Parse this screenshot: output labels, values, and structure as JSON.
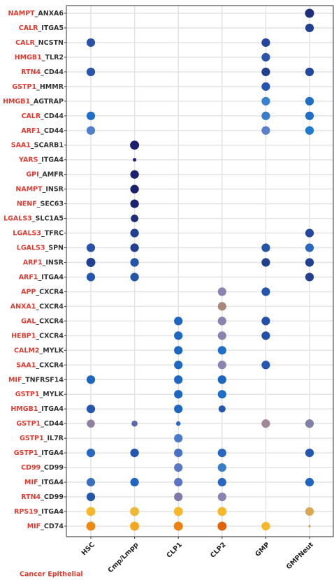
{
  "chart_data": {
    "type": "dotplot",
    "ligands": [
      "NAMPT",
      "CALR",
      "CALR",
      "HMGB1",
      "RTN4",
      "GSTP1",
      "HMGB1",
      "CALR",
      "ARF1",
      "SAA1",
      "YARS",
      "GPI",
      "NAMPT",
      "NENF",
      "LGALS3",
      "LGALS3",
      "LGALS3",
      "ARF1",
      "ARF1",
      "APP",
      "ANXA1",
      "GAL",
      "HEBP1",
      "CALM2",
      "SAA1",
      "MIF",
      "GSTP1",
      "HMGB1",
      "GSTP1",
      "GSTP1",
      "GSTP1",
      "CD99",
      "MIF",
      "RTN4",
      "RPS19",
      "MIF"
    ],
    "receptors": [
      "ANXA6",
      "ITGA5",
      "NCSTN",
      "TLR2",
      "CD44",
      "HMMR",
      "AGTRAP",
      "CD44",
      "CD44",
      "SCARB1",
      "ITGA4",
      "AMFR",
      "INSR",
      "SEC63",
      "SLC1A5",
      "TFRC",
      "SPN",
      "INSR",
      "ITGA4",
      "CXCR4",
      "CXCR4",
      "CXCR4",
      "CXCR4",
      "MYLK",
      "CXCR4",
      "TNFRSF14",
      "MYLK",
      "ITGA4",
      "CD44",
      "IL7R",
      "ITGA4",
      "CD99",
      "ITGA4",
      "CD99",
      "ITGA4",
      "CD74"
    ],
    "separator": "_",
    "ligand_color": "#e03c31",
    "receptor_color": "#333333",
    "footer": "Cancer Epithelial",
    "series": [
      {
        "name": "HSC",
        "values": [
          null,
          null,
          0.85,
          null,
          0.85,
          null,
          null,
          0.85,
          0.85,
          null,
          null,
          null,
          null,
          null,
          null,
          null,
          0.85,
          0.9,
          0.85,
          null,
          null,
          null,
          null,
          null,
          null,
          0.85,
          null,
          0.85,
          0.8,
          null,
          0.85,
          null,
          0.85,
          0.85,
          0.9,
          0.9
        ],
        "colors": [
          null,
          null,
          "#2a50a8",
          null,
          "#2a55a8",
          null,
          null,
          "#1f6fc8",
          "#5080cc",
          null,
          null,
          null,
          null,
          null,
          null,
          null,
          "#2a50a8",
          "#223f90",
          "#2456b0",
          null,
          null,
          null,
          null,
          null,
          null,
          "#1f66c0",
          null,
          "#2456b0",
          "#9080a0",
          null,
          "#2a68c0",
          null,
          "#3a70c0",
          "#2456a8",
          "#f5b82a",
          "#ec8a10"
        ]
      },
      {
        "name": "Cmp/Lmpp",
        "values": [
          null,
          null,
          null,
          null,
          null,
          null,
          null,
          null,
          null,
          0.9,
          0.35,
          0.85,
          0.85,
          0.85,
          0.75,
          0.85,
          0.85,
          0.85,
          0.85,
          null,
          null,
          null,
          null,
          null,
          null,
          null,
          null,
          null,
          0.6,
          null,
          0.85,
          null,
          0.85,
          null,
          0.9,
          0.9
        ],
        "colors": [
          null,
          null,
          null,
          null,
          null,
          null,
          null,
          null,
          null,
          "#1a1f6e",
          "#1a1f6e",
          "#1a1f6e",
          "#1a1f6e",
          "#1a246e",
          "#1e2e7a",
          "#223f90",
          "#223f90",
          "#2456a8",
          "#2456a8",
          null,
          null,
          null,
          null,
          null,
          null,
          null,
          null,
          null,
          "#5a6ab0",
          null,
          "#2456b0",
          null,
          "#1f66c0",
          null,
          "#f0b83a",
          "#f0a820"
        ]
      },
      {
        "name": "CLP1",
        "values": [
          null,
          null,
          null,
          null,
          null,
          null,
          null,
          null,
          null,
          null,
          null,
          null,
          null,
          null,
          null,
          null,
          null,
          null,
          null,
          null,
          null,
          0.85,
          0.85,
          0.85,
          0.85,
          0.85,
          0.85,
          0.85,
          0.45,
          0.85,
          0.85,
          0.85,
          0.85,
          0.85,
          0.9,
          0.9
        ],
        "colors": [
          null,
          null,
          null,
          null,
          null,
          null,
          null,
          null,
          null,
          null,
          null,
          null,
          null,
          null,
          null,
          null,
          null,
          null,
          null,
          null,
          null,
          "#1f66c0",
          "#1f66c0",
          "#1f66c0",
          "#1f66c0",
          "#1f66c0",
          "#1f66c0",
          "#1f66c0",
          "#2a68c0",
          "#4a7ac8",
          "#4a70c0",
          "#5a78c0",
          "#5a74c0",
          "#8078a8",
          "#f5b82a",
          "#ec8010"
        ]
      },
      {
        "name": "CLP2",
        "values": [
          null,
          null,
          null,
          null,
          null,
          null,
          null,
          null,
          null,
          null,
          null,
          null,
          null,
          null,
          null,
          null,
          null,
          null,
          null,
          0.85,
          0.85,
          0.85,
          0.85,
          0.85,
          0.85,
          0.85,
          0.85,
          0.7,
          null,
          null,
          0.85,
          0.85,
          0.85,
          0.85,
          0.9,
          0.9
        ],
        "colors": [
          null,
          null,
          null,
          null,
          null,
          null,
          null,
          null,
          null,
          null,
          null,
          null,
          null,
          null,
          null,
          null,
          null,
          null,
          null,
          "#8a84b0",
          "#a88878",
          "#8a84b0",
          "#8a84b0",
          "#1f6fc8",
          "#8a84b0",
          "#1f66c0",
          "#1f6fc8",
          "#2456b0",
          null,
          null,
          "#2a68c0",
          "#3a7cc6",
          "#2a68c0",
          "#8a84b0",
          "#f5b82a",
          "#e0640a"
        ]
      },
      {
        "name": "GMP",
        "values": [
          null,
          null,
          0.85,
          0.85,
          0.85,
          0.85,
          0.85,
          0.85,
          0.85,
          null,
          null,
          null,
          null,
          null,
          null,
          null,
          0.85,
          0.85,
          null,
          0.85,
          null,
          0.85,
          0.85,
          null,
          0.85,
          null,
          null,
          null,
          0.85,
          null,
          null,
          null,
          null,
          null,
          null,
          0.85
        ],
        "colors": [
          null,
          null,
          "#2345a0",
          "#2a55a8",
          "#223f90",
          "#2456b0",
          "#3a80d0",
          "#3a7cc6",
          "#5a7fcc",
          null,
          null,
          null,
          null,
          null,
          null,
          null,
          "#2456a8",
          "#223f90",
          null,
          "#2456b0",
          null,
          "#2450a8",
          "#2450a8",
          null,
          "#2456b0",
          null,
          null,
          null,
          "#a08898",
          null,
          null,
          null,
          null,
          null,
          null,
          "#f5b82a"
        ]
      },
      {
        "name": "GMPNeut",
        "values": [
          0.9,
          0.85,
          null,
          null,
          0.85,
          null,
          0.85,
          0.85,
          0.85,
          null,
          null,
          null,
          null,
          null,
          null,
          0.85,
          0.85,
          0.85,
          0.85,
          null,
          null,
          null,
          null,
          null,
          null,
          null,
          null,
          null,
          0.85,
          null,
          0.85,
          null,
          0.85,
          null,
          0.85,
          0.2
        ],
        "colors": [
          "#1e2e7a",
          "#223f90",
          null,
          null,
          "#2348a0",
          null,
          "#1f6fc8",
          "#1f6fc8",
          "#1f7ad0",
          null,
          null,
          null,
          null,
          null,
          null,
          "#2345a0",
          "#2a68c0",
          "#223f90",
          "#223f90",
          null,
          null,
          null,
          null,
          null,
          null,
          null,
          null,
          null,
          "#8080a8",
          null,
          "#2456b0",
          null,
          "#1f66c0",
          null,
          "#d8a850",
          "#c08a30"
        ]
      }
    ]
  }
}
